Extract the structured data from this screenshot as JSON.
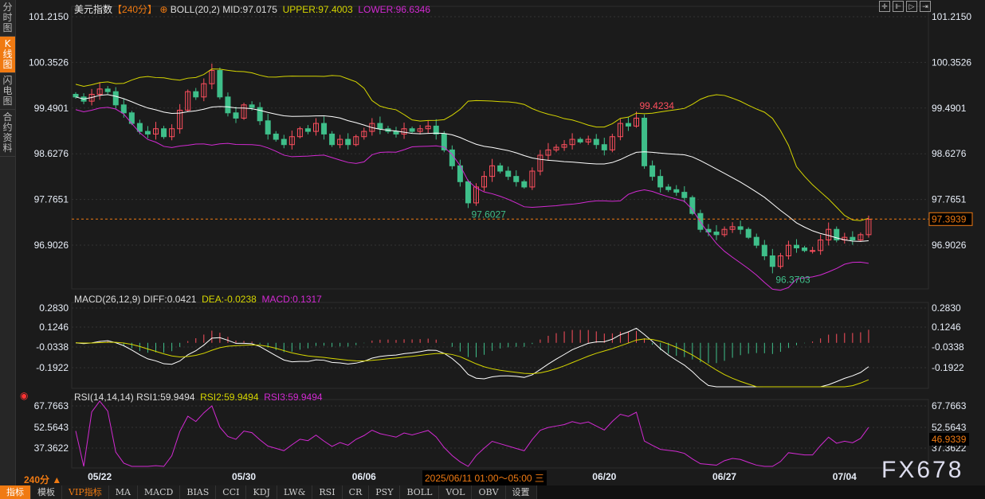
{
  "sidebar": {
    "tabs": [
      {
        "label": "分时图",
        "active": false
      },
      {
        "label": "K线图",
        "active": true
      },
      {
        "label": "闪电图",
        "active": false
      },
      {
        "label": "合约资料",
        "active": false
      }
    ]
  },
  "header": {
    "symbol": "美元指数",
    "period": "【240分】",
    "indicator": "BOLL(20,2)",
    "mid": "MID:97.0175",
    "upper": "UPPER:97.4003",
    "lower": "LOWER:96.6346"
  },
  "macd_header": {
    "name": "MACD(26,12,9)",
    "diff": "DIFF:0.0421",
    "dea": "DEA:-0.0238",
    "macd": "MACD:0.1317"
  },
  "rsi_header": {
    "name": "RSI(14,14,14)",
    "rsi1": "RSI1:59.9494",
    "rsi2": "RSI2:59.9494",
    "rsi3": "RSI3:59.9494"
  },
  "price_axis": [
    "101.2150",
    "100.3526",
    "99.4901",
    "98.6276",
    "97.7651",
    "96.9026"
  ],
  "price_axis_values": [
    101.215,
    100.3526,
    99.4901,
    98.6276,
    97.7651,
    96.9026
  ],
  "current_price": "97.3939",
  "macd_axis": [
    "0.2830",
    "0.1246",
    "-0.0338",
    "-0.1922"
  ],
  "rsi_axis": [
    "67.7663",
    "52.5643",
    "37.3622"
  ],
  "rsi_current": "46.9339",
  "annotations": [
    {
      "label": "99.4234",
      "bar": 70,
      "kind": "high"
    },
    {
      "label": "97.6027",
      "bar": 49,
      "kind": "low"
    },
    {
      "label": "96.3703",
      "bar": 87,
      "kind": "low"
    }
  ],
  "date_labels": [
    {
      "label": "05/22",
      "bar": 3
    },
    {
      "label": "05/30",
      "bar": 21
    },
    {
      "label": "06/06",
      "bar": 36
    },
    {
      "label": "06/20",
      "bar": 66
    },
    {
      "label": "06/27",
      "bar": 81
    },
    {
      "label": "07/04",
      "bar": 96
    }
  ],
  "period_label": "240分 ▲",
  "crosshair_time": "2025/06/11 01:00～05:00 三",
  "toolbar_icons": [
    "crosshair-icon",
    "zoom-range-icon",
    "play-icon",
    "exit-icon"
  ],
  "bottom_tabs": [
    {
      "label": "指标",
      "active": true
    },
    {
      "label": "模板"
    },
    {
      "label": "VIP指标",
      "vip": true
    },
    {
      "label": "MA"
    },
    {
      "label": "MACD"
    },
    {
      "label": "BIAS"
    },
    {
      "label": "CCI"
    },
    {
      "label": "KDJ"
    },
    {
      "label": "LW&"
    },
    {
      "label": "RSI"
    },
    {
      "label": "CR"
    },
    {
      "label": "PSY"
    },
    {
      "label": "BOLL"
    },
    {
      "label": "VOL"
    },
    {
      "label": "OBV"
    },
    {
      "label": "设置"
    }
  ],
  "watermark": "FX678",
  "colors": {
    "up": "#ff4f5e",
    "down": "#3fbf8a",
    "upper": "#d6d600",
    "lower": "#d22ad2",
    "mid": "#ffffff",
    "accent": "#f07a12"
  },
  "chart_data": {
    "type": "candlestick",
    "closes": [
      99.7,
      99.62,
      99.75,
      99.85,
      99.8,
      99.55,
      99.4,
      99.2,
      99.05,
      99.0,
      99.1,
      98.95,
      99.1,
      99.45,
      99.8,
      99.7,
      99.95,
      100.2,
      99.7,
      99.4,
      99.3,
      99.55,
      99.5,
      99.25,
      99.0,
      98.9,
      98.8,
      98.95,
      99.1,
      99.05,
      99.2,
      99.0,
      98.8,
      98.9,
      98.8,
      98.95,
      99.05,
      99.2,
      99.1,
      99.05,
      99.0,
      99.1,
      99.05,
      99.1,
      99.15,
      99.0,
      98.7,
      98.4,
      98.1,
      97.7,
      98.0,
      98.2,
      98.4,
      98.3,
      98.2,
      98.1,
      98.0,
      98.3,
      98.6,
      98.7,
      98.75,
      98.8,
      98.9,
      98.85,
      98.9,
      98.8,
      98.7,
      98.95,
      99.2,
      99.15,
      99.3,
      98.4,
      98.2,
      98.0,
      97.95,
      97.9,
      97.8,
      97.5,
      97.2,
      97.15,
      97.1,
      97.2,
      97.25,
      97.2,
      97.05,
      96.9,
      96.7,
      96.5,
      96.7,
      96.9,
      96.85,
      96.8,
      96.8,
      97.0,
      97.2,
      97.0,
      97.05,
      97.0,
      97.1,
      97.39
    ]
  }
}
